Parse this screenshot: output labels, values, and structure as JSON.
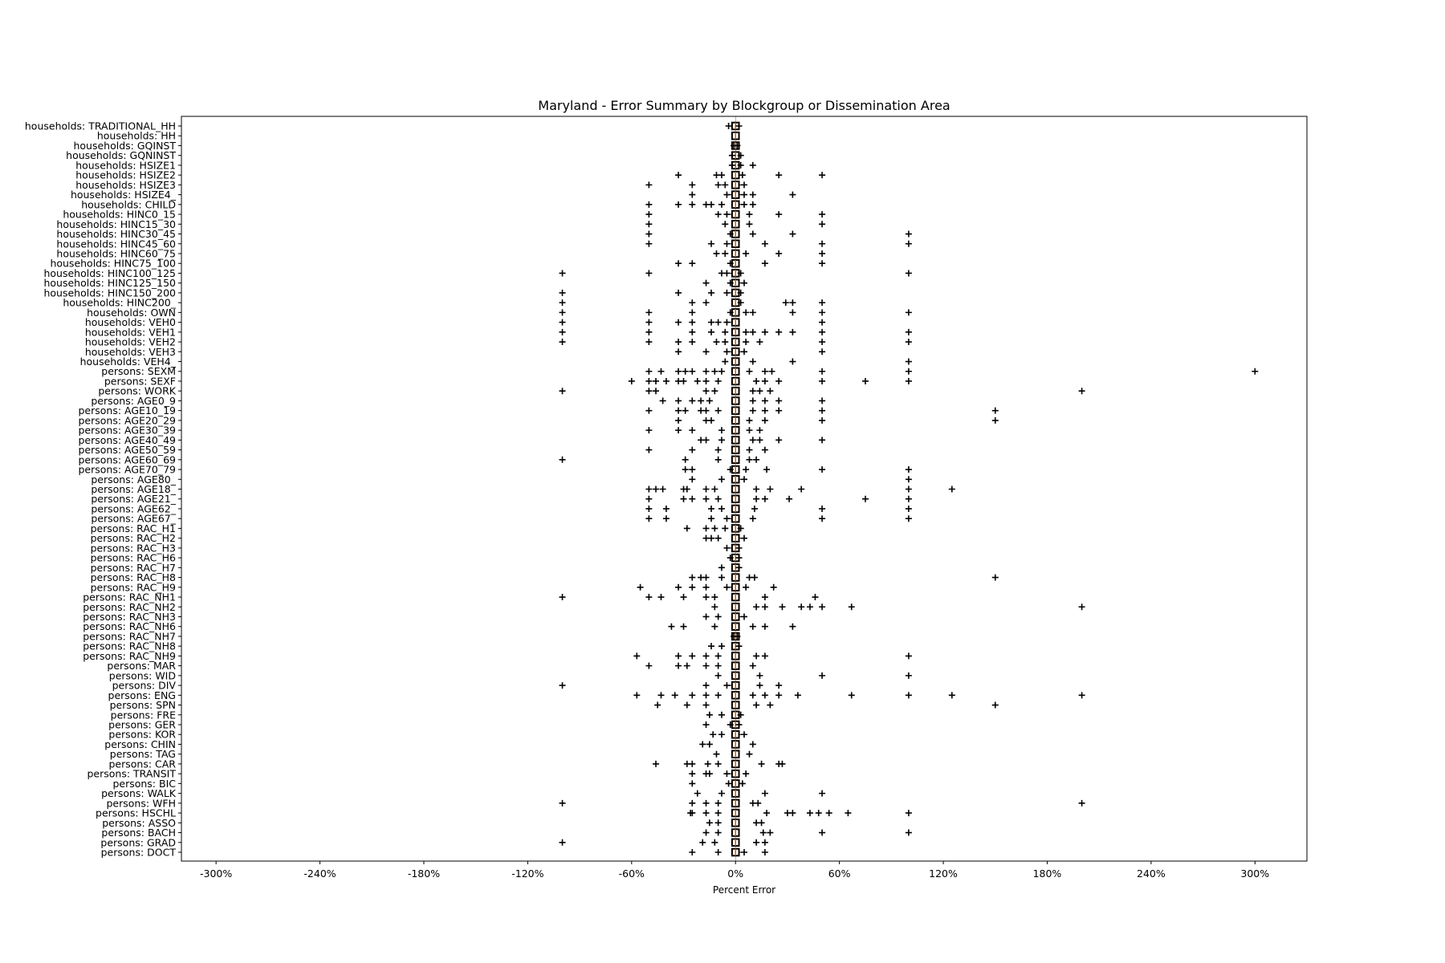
{
  "chart_data": {
    "type": "box",
    "orientation": "horizontal",
    "title": "Maryland - Error Summary by Blockgroup or Dissemination Area",
    "xlabel": "Percent Error",
    "ylabel": "",
    "xlim": [
      -320,
      330
    ],
    "xticks": [
      -300,
      -240,
      -180,
      -120,
      -60,
      0,
      60,
      120,
      180,
      240,
      300
    ],
    "xtick_labels": [
      "-300%",
      "-240%",
      "-180%",
      "-120%",
      "-60%",
      "0%",
      "60%",
      "120%",
      "180%",
      "240%",
      "300%"
    ],
    "grid": false,
    "colors": {
      "box": "#000000",
      "median": "#ff7f0e",
      "outlier": "#000000"
    },
    "outlier_marker": "+",
    "box_iqr_approx": [
      -2,
      2
    ],
    "median_approx": 0,
    "categories": [
      "households: TRADITIONAL_HH",
      "households: HH",
      "households: GQINST",
      "households: GQNINST",
      "households: HSIZE1",
      "households: HSIZE2",
      "households: HSIZE3",
      "households: HSIZE4_",
      "households: CHILD",
      "households: HINC0_15",
      "households: HINC15_30",
      "households: HINC30_45",
      "households: HINC45_60",
      "households: HINC60_75",
      "households: HINC75_100",
      "households: HINC100_125",
      "households: HINC125_150",
      "households: HINC150_200",
      "households: HINC200_",
      "households: OWN",
      "households: VEH0",
      "households: VEH1",
      "households: VEH2",
      "households: VEH3",
      "households: VEH4_",
      "persons: SEXM",
      "persons: SEXF",
      "persons: WORK",
      "persons: AGE0_9",
      "persons: AGE10_19",
      "persons: AGE20_29",
      "persons: AGE30_39",
      "persons: AGE40_49",
      "persons: AGE50_59",
      "persons: AGE60_69",
      "persons: AGE70_79",
      "persons: AGE80_",
      "persons: AGE18_",
      "persons: AGE21_",
      "persons: AGE62_",
      "persons: AGE67_",
      "persons: RAC_H1",
      "persons: RAC_H2",
      "persons: RAC_H3",
      "persons: RAC_H6",
      "persons: RAC_H7",
      "persons: RAC_H8",
      "persons: RAC_H9",
      "persons: RAC_NH1",
      "persons: RAC_NH2",
      "persons: RAC_NH3",
      "persons: RAC_NH6",
      "persons: RAC_NH7",
      "persons: RAC_NH8",
      "persons: RAC_NH9",
      "persons: MAR",
      "persons: WID",
      "persons: DIV",
      "persons: ENG",
      "persons: SPN",
      "persons: FRE",
      "persons: GER",
      "persons: KOR",
      "persons: CHIN",
      "persons: TAG",
      "persons: CAR",
      "persons: TRANSIT",
      "persons: BIC",
      "persons: WALK",
      "persons: WFH",
      "persons: HSCHL",
      "persons: ASSO",
      "persons: BACH",
      "persons: GRAD",
      "persons: DOCT"
    ],
    "outliers": [
      [
        -4,
        2
      ],
      [],
      [
        -1,
        1
      ],
      [
        -2,
        3
      ],
      [
        -2,
        3,
        10
      ],
      [
        -33,
        -11,
        -8,
        4,
        25,
        50
      ],
      [
        -50,
        -25,
        -10,
        -6,
        5
      ],
      [
        -25,
        -5,
        5,
        10,
        33
      ],
      [
        -50,
        -33,
        -25,
        -17,
        -14,
        -8,
        5,
        10
      ],
      [
        -50,
        -10,
        -5,
        8,
        25,
        50
      ],
      [
        -50,
        -6,
        8,
        50
      ],
      [
        -50,
        -3,
        10,
        33,
        100
      ],
      [
        -50,
        -14,
        -5,
        17,
        50,
        100
      ],
      [
        -11,
        -6,
        6,
        25,
        50
      ],
      [
        -33,
        -25,
        -3,
        17,
        50
      ],
      [
        -100,
        -50,
        -8,
        -5,
        3,
        100
      ],
      [
        -17,
        -3,
        5
      ],
      [
        -100,
        -33,
        -14,
        -5,
        3
      ],
      [
        -100,
        -25,
        -17,
        3,
        29,
        33,
        50
      ],
      [
        -100,
        -50,
        -25,
        -3,
        6,
        10,
        33,
        50,
        100
      ],
      [
        -100,
        -50,
        -33,
        -25,
        -14,
        -10,
        -5,
        50
      ],
      [
        -100,
        -50,
        -25,
        -14,
        -6,
        6,
        10,
        17,
        25,
        33,
        50,
        100
      ],
      [
        -100,
        -50,
        -33,
        -25,
        -11,
        -6,
        6,
        14,
        50,
        100
      ],
      [
        -33,
        -17,
        -5,
        5,
        50
      ],
      [
        -6,
        10,
        33,
        100
      ],
      [
        -50,
        -43,
        -33,
        -29,
        -25,
        -17,
        -12,
        -8,
        8,
        17,
        21,
        50,
        100,
        300
      ],
      [
        -60,
        -50,
        -46,
        -40,
        -33,
        -30,
        -22,
        -17,
        -10,
        12,
        17,
        25,
        50,
        75,
        100
      ],
      [
        -100,
        -50,
        -46,
        -17,
        -12,
        10,
        14,
        20,
        200
      ],
      [
        -42,
        -33,
        -25,
        -20,
        -15,
        10,
        17,
        25,
        50
      ],
      [
        -50,
        -33,
        -29,
        -20,
        -17,
        -10,
        10,
        17,
        25,
        50,
        150
      ],
      [
        -33,
        -17,
        -14,
        8,
        17,
        50,
        150
      ],
      [
        -50,
        -33,
        -25,
        -8,
        8,
        14
      ],
      [
        -20,
        -17,
        -8,
        10,
        14,
        25,
        50
      ],
      [
        -50,
        -25,
        -10,
        8,
        17
      ],
      [
        -100,
        -29,
        -10,
        8,
        12
      ],
      [
        -29,
        -25,
        -3,
        6,
        18,
        50,
        100
      ],
      [
        -25,
        -8,
        5,
        100
      ],
      [
        -50,
        -46,
        -42,
        -30,
        -28,
        -17,
        -12,
        12,
        20,
        38,
        100,
        125
      ],
      [
        -50,
        -30,
        -25,
        -17,
        -10,
        12,
        17,
        31,
        75,
        100
      ],
      [
        -50,
        -40,
        -14,
        -8,
        11,
        50,
        100
      ],
      [
        -50,
        -40,
        -14,
        -5,
        10,
        50,
        100
      ],
      [
        -28,
        -17,
        -12,
        -6,
        3
      ],
      [
        -17,
        -14,
        -10,
        5
      ],
      [
        -5,
        2
      ],
      [
        -3,
        2
      ],
      [
        -8,
        2
      ],
      [
        -25,
        -20,
        -17,
        -8,
        8,
        11,
        150
      ],
      [
        -55,
        -33,
        -25,
        -17,
        -5,
        6,
        22
      ],
      [
        -100,
        -50,
        -43,
        -30,
        -17,
        -12,
        17,
        46
      ],
      [
        -12,
        12,
        17,
        27,
        38,
        43,
        50,
        67,
        200
      ],
      [
        -17,
        -10,
        5
      ],
      [
        -37,
        -30,
        -12,
        10,
        17,
        33
      ],
      [
        -1,
        1
      ],
      [
        -14,
        -8,
        2
      ],
      [
        -57,
        -33,
        -25,
        -17,
        -10,
        12,
        17,
        100
      ],
      [
        -50,
        -33,
        -28,
        -17,
        -10,
        10
      ],
      [
        -10,
        14,
        50,
        100
      ],
      [
        -100,
        -17,
        -5,
        14,
        25
      ],
      [
        -57,
        -43,
        -35,
        -25,
        -17,
        -10,
        10,
        17,
        25,
        36,
        67,
        100,
        125,
        200
      ],
      [
        -45,
        -28,
        -17,
        12,
        20,
        150
      ],
      [
        -15,
        -8,
        3
      ],
      [
        -17,
        -3,
        2
      ],
      [
        -13,
        -8,
        5
      ],
      [
        -19,
        -15,
        10
      ],
      [
        -11,
        8
      ],
      [
        -46,
        -28,
        -25,
        -16,
        -10,
        15,
        25,
        27
      ],
      [
        -25,
        -17,
        -15,
        -5,
        6
      ],
      [
        -25,
        -4,
        4
      ],
      [
        -22,
        -8,
        17,
        50
      ],
      [
        -100,
        -25,
        -17,
        -10,
        10,
        13,
        200
      ],
      [
        -26,
        -25,
        -17,
        -10,
        18,
        30,
        33,
        43,
        48,
        54,
        65,
        100
      ],
      [
        -15,
        -10,
        12,
        15
      ],
      [
        -17,
        -10,
        16,
        20,
        50,
        100
      ],
      [
        -100,
        -19,
        -12,
        12,
        17
      ],
      [
        -25,
        -10,
        5,
        17
      ]
    ]
  }
}
